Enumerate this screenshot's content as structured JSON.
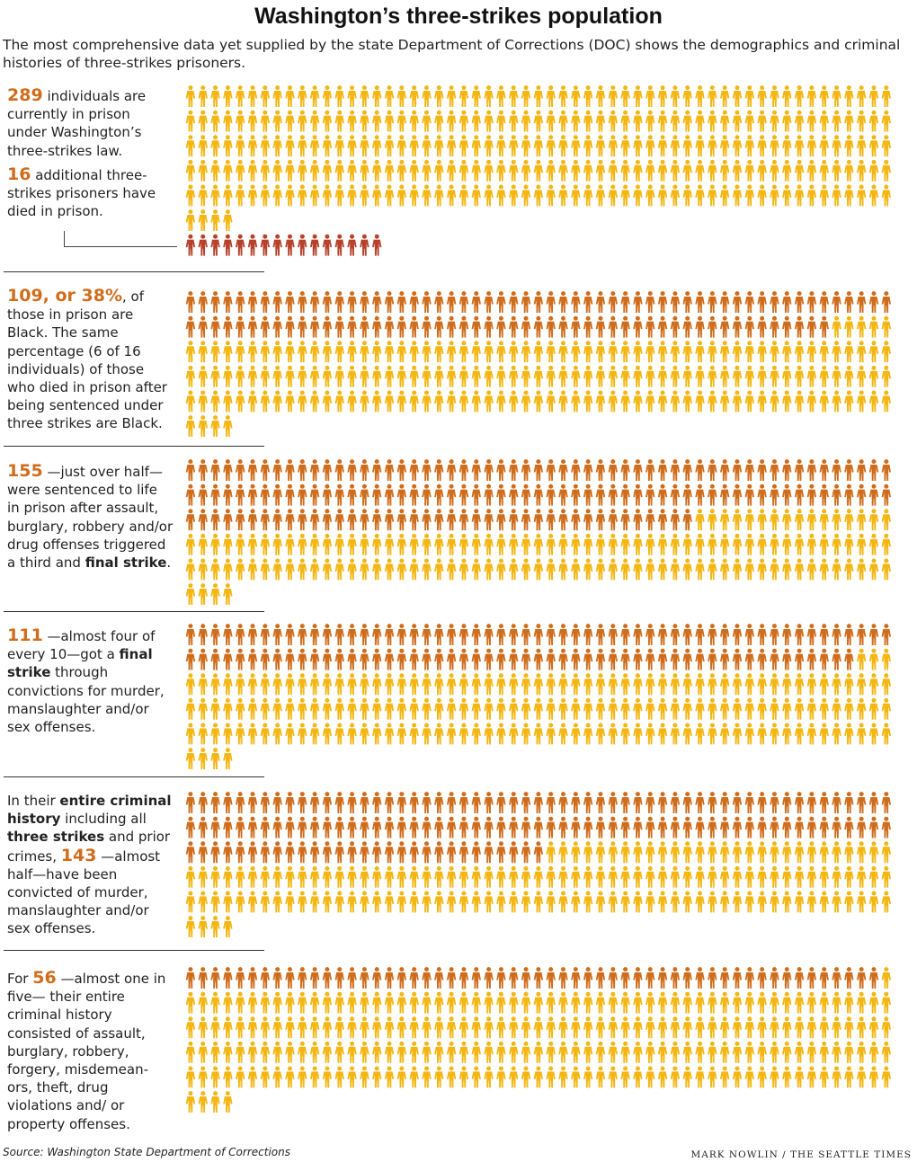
{
  "title": "Washington’s three-strikes population",
  "subtitle": "The most comprehensive data yet supplied by the state Department of Corrections (DOC) shows the demographics and criminal histories of three-strikes prisoners.",
  "source": "Source: Washington State Department of Corrections",
  "credit": "MARK NOWLIN / THE SEATTLE TIMES",
  "colors": {
    "highlight": "#cf6d1c",
    "rest": "#f3b613",
    "died": "#b6422c",
    "accent_text": "#cf6d1c"
  },
  "icon": "person-icon",
  "sections": [
    {
      "text1_num": "289",
      "text1_rest": " individuals are currently in prison under Washington’s three-strikes law.",
      "text2_num": "16",
      "text2_rest": " additional three-strikes prisoners have died in prison."
    },
    {
      "num": "109, or 38%",
      "rest": ", of those in prison are Black. The same percentage (6 of 16 individuals) of those who died in prison after being sentenced under three strikes are Black."
    },
    {
      "num": "155",
      "rest_a": " —just over half— were sentenced to life in prison after assault, burglary, robbery and/or drug offenses triggered a third and ",
      "bold_a": "final strike",
      "rest_b": "."
    },
    {
      "num": "111",
      "rest_a": " —almost four of every 10—got a ",
      "bold_a": "final strike",
      "rest_b": " through convictions for murder, manslaughter and/or sex offenses."
    },
    {
      "pre_a": "In their ",
      "bold_a": "entire criminal history",
      "pre_b": " including all ",
      "bold_b": "three strikes",
      "pre_c": " and prior crimes, ",
      "num": "143",
      "rest": " —almost half—have been convicted of murder, manslaughter and/or sex offenses."
    },
    {
      "pre": "For ",
      "num": "56",
      "rest": " —almost one in five— their entire criminal history consisted of assault, burglary, robbery, forgery, misdemean-ors, theft, drug violations and/ or property offenses."
    }
  ],
  "chart_data": [
    {
      "type": "waffle",
      "total_in_prison": 289,
      "highlighted": 289,
      "died_in_prison": 16,
      "per_row": 57
    },
    {
      "type": "waffle",
      "total": 289,
      "highlighted": 109,
      "per_row": 57
    },
    {
      "type": "waffle",
      "total": 289,
      "highlighted": 155,
      "per_row": 57
    },
    {
      "type": "waffle",
      "total": 289,
      "highlighted": 111,
      "per_row": 57
    },
    {
      "type": "waffle",
      "total": 289,
      "highlighted": 143,
      "per_row": 57
    },
    {
      "type": "waffle",
      "total": 289,
      "highlighted": 56,
      "per_row": 57
    }
  ]
}
